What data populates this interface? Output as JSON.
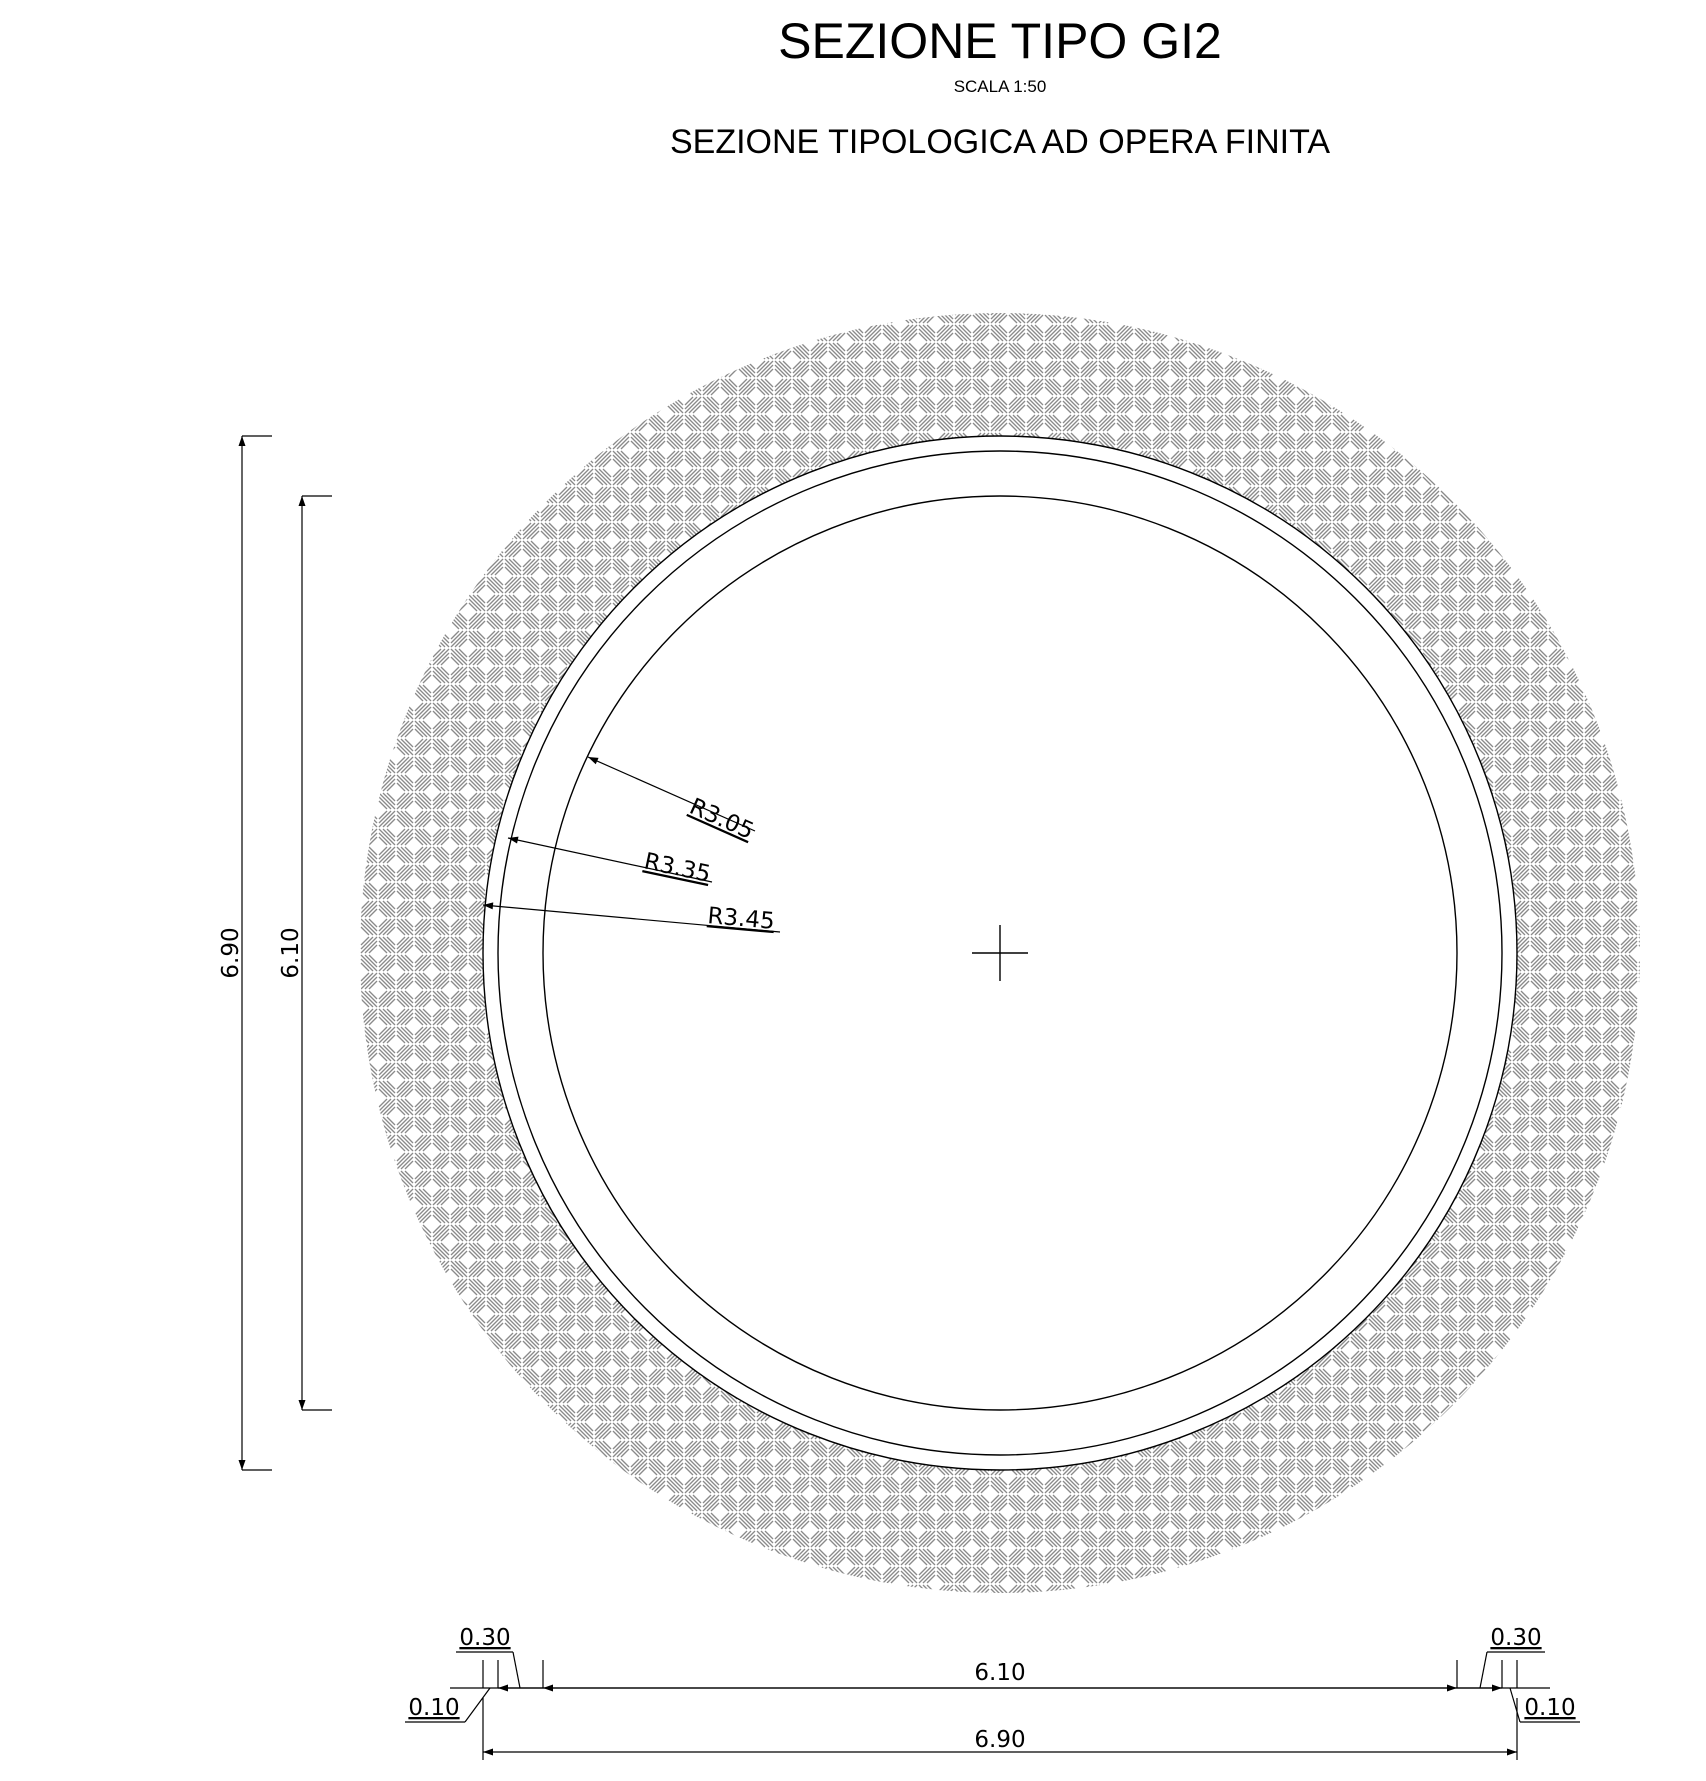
{
  "header": {
    "title": "SEZIONE TIPO GI2",
    "scale": "SCALA 1:50",
    "subtitle": "SEZIONE TIPOLOGICA AD OPERA FINITA"
  },
  "section": {
    "radii_m": [
      3.05,
      3.35,
      3.45
    ],
    "radius_labels": [
      "R3.05",
      "R3.35",
      "R3.45"
    ],
    "ground_hatch": "herringbone"
  },
  "dimensions": {
    "vertical_outer": "6.90",
    "vertical_inner": "6.10",
    "bottom_left_upper": "0.30",
    "bottom_left_lower": "0.10",
    "bottom_right_upper": "0.30",
    "bottom_right_lower": "0.10",
    "horizontal_inner": "6.10",
    "horizontal_outer": "6.90"
  },
  "colors": {
    "line": "#000000",
    "hatch": "#8a8a8a",
    "background": "#ffffff"
  }
}
